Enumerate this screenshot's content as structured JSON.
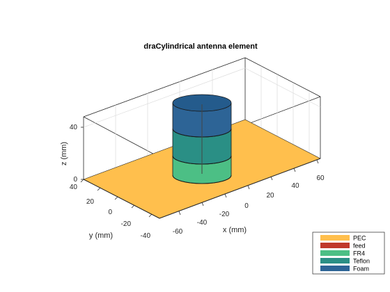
{
  "title": "draCylindrical antenna element",
  "axes": {
    "xlabel": "x (mm)",
    "ylabel": "y (mm)",
    "zlabel": "z (mm)",
    "x_ticks": [
      "-60",
      "-40",
      "-20",
      "0",
      "20",
      "40",
      "60"
    ],
    "y_ticks": [
      "-40",
      "-20",
      "0",
      "20",
      "40"
    ],
    "z_ticks": [
      "0",
      "40"
    ]
  },
  "legend": {
    "placement": "bottom-right",
    "items": [
      {
        "label": "PEC",
        "color": "#ffbf4d"
      },
      {
        "label": "feed",
        "color": "#c0392b"
      },
      {
        "label": "FR4",
        "color": "#4cbf85"
      },
      {
        "label": "Teflon",
        "color": "#2a8f85"
      },
      {
        "label": "Foam",
        "color": "#2d6496"
      }
    ]
  },
  "colors": {
    "ground_plane": "#ffbf4d",
    "fr4": "#4cbf85",
    "teflon": "#2a8f85",
    "foam": "#2d6496"
  }
}
